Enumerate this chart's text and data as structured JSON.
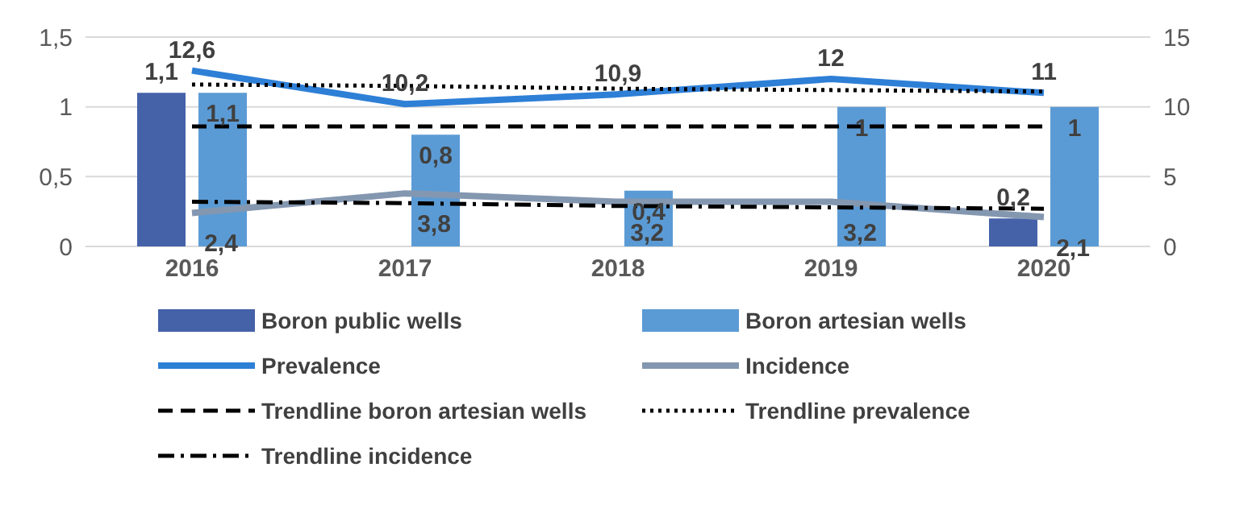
{
  "chart_data": {
    "type": "bar",
    "categories": [
      "2016",
      "2017",
      "2018",
      "2019",
      "2020"
    ],
    "ylim": [
      0,
      1.5
    ],
    "yticks": [
      0,
      {
        "value": 0.5,
        "label": "0,5"
      },
      1,
      {
        "value": 1.5,
        "label": "1,5"
      }
    ],
    "y2lim": [
      0,
      15
    ],
    "y2ticks": [
      0,
      5,
      10,
      15
    ],
    "grid": "y",
    "legend": "bottom",
    "marker": "none",
    "series": [
      {
        "name": "Boron public wells",
        "color": "#4562a9",
        "values": [
          1.1,
          0,
          0,
          0,
          0.2
        ],
        "value_labels": [
          "1,1",
          null,
          null,
          null,
          "0,2"
        ]
      },
      {
        "name": "Boron artesian wells",
        "color": "#5b9bd5",
        "values": [
          1.1,
          0.8,
          0.4,
          1,
          1
        ],
        "value_labels": [
          "1,1",
          "0,8",
          "0,4",
          "1",
          "1"
        ]
      },
      {
        "name": "Prevalence",
        "type": "line",
        "axis": "y2",
        "color": "#2e7fd6",
        "values": [
          12.6,
          10.2,
          10.9,
          12,
          11
        ],
        "value_labels": [
          "12,6",
          "10,2",
          "10,9",
          "12",
          "11"
        ]
      },
      {
        "name": "Incidence",
        "type": "line",
        "axis": "y2",
        "color": "#8497b0",
        "values": [
          2.4,
          3.8,
          3.2,
          3.2,
          2.1
        ],
        "value_labels": [
          "2,4",
          "3,8",
          "3,2",
          "3,2",
          "2,1"
        ]
      },
      {
        "name": "Trendline boron artesian wells",
        "type": "line",
        "line_style": "dashed",
        "color": "#000000",
        "values": [
          0.86,
          0.86,
          0.86,
          0.86,
          0.86
        ]
      },
      {
        "name": "Trendline prevalence",
        "type": "line",
        "axis": "y2",
        "line_style": "dotted",
        "color": "#000000",
        "values": [
          11.6,
          11.5,
          11.3,
          11.2,
          11.1
        ]
      },
      {
        "name": "Trendline incidence",
        "type": "line",
        "axis": "y2",
        "line_style": "dashdot",
        "color": "#000000",
        "values": [
          3.2,
          3.1,
          2.9,
          2.8,
          2.7
        ]
      }
    ]
  }
}
